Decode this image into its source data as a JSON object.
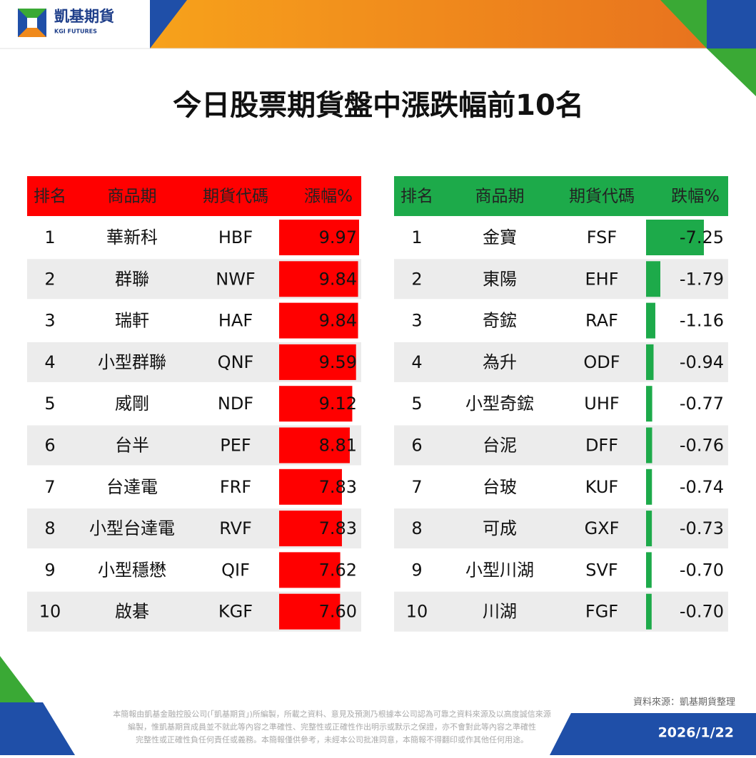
{
  "header": {
    "brand": "凱基期貨",
    "brand_en": "KGI FUTURES"
  },
  "title": "今日股票期貨盤中漲跌幅前10名",
  "tables": [
    {
      "columns": [
        "排名",
        "商品期",
        "期貨代碼",
        "漲幅%"
      ],
      "ranks": [
        1,
        2,
        3,
        4,
        5,
        6,
        7,
        8,
        9,
        10
      ],
      "names": [
        "華新科",
        "群聯",
        "瑞軒",
        "小型群聯",
        "威剛",
        "台半",
        "台達電",
        "小型台達電",
        "小型穩懋",
        "啟碁"
      ],
      "codes": [
        "HBF",
        "NWF",
        "HAF",
        "QNF",
        "NDF",
        "PEF",
        "FRF",
        "RVF",
        "QIF",
        "KGF"
      ],
      "values": [
        9.97,
        9.84,
        9.84,
        9.59,
        9.12,
        8.81,
        7.83,
        7.83,
        7.62,
        7.6
      ],
      "value_labels": [
        "9.97",
        "9.84",
        "9.84",
        "9.59",
        "9.12",
        "8.81",
        "7.83",
        "7.83",
        "7.62",
        "7.60"
      ],
      "color": "#ff0000"
    },
    {
      "columns": [
        "排名",
        "商品期",
        "期貨代碼",
        "跌幅%"
      ],
      "ranks": [
        1,
        2,
        3,
        4,
        5,
        6,
        7,
        8,
        9,
        10
      ],
      "names": [
        "金寶",
        "東陽",
        "奇鋐",
        "為升",
        "小型奇鋐",
        "台泥",
        "台玻",
        "可成",
        "小型川湖",
        "川湖"
      ],
      "codes": [
        "FSF",
        "EHF",
        "RAF",
        "ODF",
        "UHF",
        "DFF",
        "KUF",
        "GXF",
        "SVF",
        "FGF"
      ],
      "values": [
        -7.25,
        -1.79,
        -1.16,
        -0.94,
        -0.77,
        -0.76,
        -0.74,
        -0.73,
        -0.7,
        -0.7
      ],
      "value_labels": [
        "-7.25",
        "-1.79",
        "-1.16",
        "-0.94",
        "-0.77",
        "-0.76",
        "-0.74",
        "-0.73",
        "-0.70",
        "-0.70"
      ],
      "color": "#1daa4a"
    }
  ],
  "footer": {
    "source": "資料來源：凱基期貨整理",
    "disclaimer": [
      "本簡報由凱基金融控股公司(「凱基期貨」)所編製，所載之資料、意見及預測乃根據本公司認為可靠之資料來源及以高度誠信來源",
      "編製，惟凱基期貨成員並不就此等內容之準確性、完整性或正確性作出明示或默示之保證，亦不會對此等內容之準確性",
      "完整性或正確性負任何責任或義務。本簡報僅供參考，未經本公司批准同意，本簡報不得翻印或作其他任何用途。"
    ],
    "date": "2026/1/22"
  }
}
